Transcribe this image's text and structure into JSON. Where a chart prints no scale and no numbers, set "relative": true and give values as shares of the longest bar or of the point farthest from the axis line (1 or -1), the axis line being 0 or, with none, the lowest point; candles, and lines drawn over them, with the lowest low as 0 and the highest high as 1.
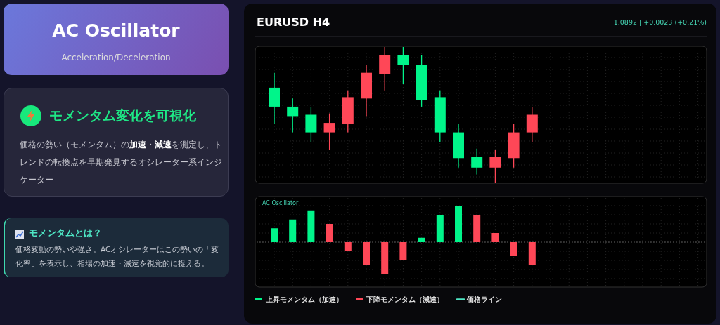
{
  "chart_data": [
    {
      "type": "other",
      "title": "AC Oscillator",
      "subtitle": "Acceleration/Deceleration",
      "annotations": [
        "モメンタム変化を可視化",
        "価格の勢い（モメンタム）の**加速**・**減速**を測定し、トレンドの転換点を早期発見するオシレーター系インジケーター",
        "モメンタムとは？",
        "価格変動の勢いや強さ。ACオシレーターはこの勢いの「変化率」を表示し、相場の加速・減速を視覚的に捉える。"
      ]
    },
    {
      "type": "candlestick",
      "title": "EURUSD H4",
      "annotations": [
        "1.0892 | +0.0023 (+0.21%)"
      ],
      "relative": true,
      "grid": true,
      "categories": [
        null,
        null,
        null,
        null,
        null,
        null,
        null,
        null,
        null,
        null,
        null,
        null,
        null,
        null,
        null
      ],
      "ohlc": [
        [
          0.56,
          0.81,
          0.43,
          0.7
        ],
        [
          0.49,
          0.62,
          0.37,
          0.56
        ],
        [
          0.37,
          0.56,
          0.3,
          0.5
        ],
        [
          0.44,
          0.51,
          0.24,
          0.37
        ],
        [
          0.63,
          0.68,
          0.37,
          0.43
        ],
        [
          0.81,
          0.87,
          0.49,
          0.62
        ],
        [
          0.94,
          1,
          0.68,
          0.8
        ],
        [
          0.87,
          1,
          0.73,
          0.94
        ],
        [
          0.61,
          0.94,
          0.56,
          0.87
        ],
        [
          0.37,
          0.68,
          0.3,
          0.63
        ],
        [
          0.18,
          0.43,
          0.11,
          0.37
        ],
        [
          0.11,
          0.25,
          0.06,
          0.19
        ],
        [
          0.19,
          0.24,
          0,
          0.11
        ],
        [
          0.37,
          0.43,
          0.11,
          0.18
        ],
        [
          0.5,
          0.56,
          0.3,
          0.37
        ]
      ]
    },
    {
      "type": "bar",
      "title": "AC Oscillator",
      "relative": true,
      "grid": true,
      "legend": "bottom",
      "ref_lines": [
        {
          "axis": "y",
          "value": 0,
          "color": "#555555",
          "line_style": "dashed"
        }
      ],
      "categories": [
        null,
        null,
        null,
        null,
        null,
        null,
        null,
        null,
        null,
        null,
        null,
        null,
        null,
        null,
        null
      ],
      "series": [
        {
          "name": "上昇モメンタム（加速）",
          "color": "#00f58a",
          "values": [
            0.38,
            0.62,
            0.87,
            null,
            null,
            null,
            null,
            null,
            0.12,
            0.75,
            1,
            null,
            null,
            null,
            null
          ]
        },
        {
          "name": "下降モメンタム（減速）",
          "color": "#ff4757",
          "values": [
            null,
            null,
            null,
            0.5,
            -0.25,
            -0.62,
            -0.87,
            -0.5,
            null,
            null,
            null,
            0.75,
            0.25,
            -0.38,
            -0.62
          ]
        },
        {
          "name": "価格ライン",
          "color": "#4ee6c4",
          "type": "line",
          "values": [
            null,
            null,
            null,
            null,
            null,
            null,
            null,
            null,
            null,
            null,
            null,
            null,
            null,
            null,
            null
          ]
        }
      ]
    }
  ]
}
